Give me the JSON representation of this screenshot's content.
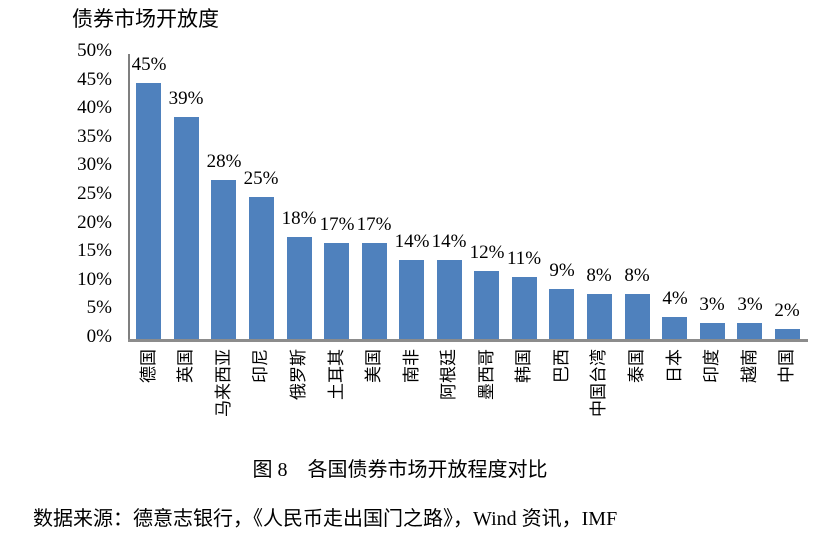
{
  "chart_data": {
    "type": "bar",
    "title": "债券市场开放度",
    "categories": [
      "德国",
      "英国",
      "马来西亚",
      "印尼",
      "俄罗斯",
      "土耳其",
      "美国",
      "南非",
      "阿根廷",
      "墨西哥",
      "韩国",
      "巴西",
      "中国台湾",
      "泰国",
      "日本",
      "印度",
      "越南",
      "中国"
    ],
    "values": [
      45,
      39,
      28,
      25,
      18,
      17,
      17,
      14,
      14,
      12,
      11,
      9,
      8,
      8,
      4,
      3,
      3,
      2
    ],
    "value_labels": [
      "45%",
      "39%",
      "28%",
      "25%",
      "18%",
      "17%",
      "17%",
      "14%",
      "14%",
      "12%",
      "11%",
      "9%",
      "8%",
      "8%",
      "4%",
      "3%",
      "3%",
      "2%"
    ],
    "y_tick_values": [
      50,
      45,
      40,
      35,
      30,
      25,
      20,
      15,
      10,
      5,
      0
    ],
    "y_tick_labels": [
      "50%",
      "45%",
      "40%",
      "35%",
      "30%",
      "25%",
      "20%",
      "15%",
      "10%",
      "5%",
      "0%"
    ],
    "ylim": [
      0,
      50
    ],
    "grid": false,
    "legend": "none",
    "xlabel": "",
    "ylabel": "",
    "bar_color": "#4F81BD",
    "axis_color": "#8C8C8C",
    "label_color": "#000000"
  },
  "caption": "图 8　各国债券市场开放程度对比",
  "source_line": "数据来源：德意志银行，《人民币走出国门之路》，Wind 资讯，IMF"
}
